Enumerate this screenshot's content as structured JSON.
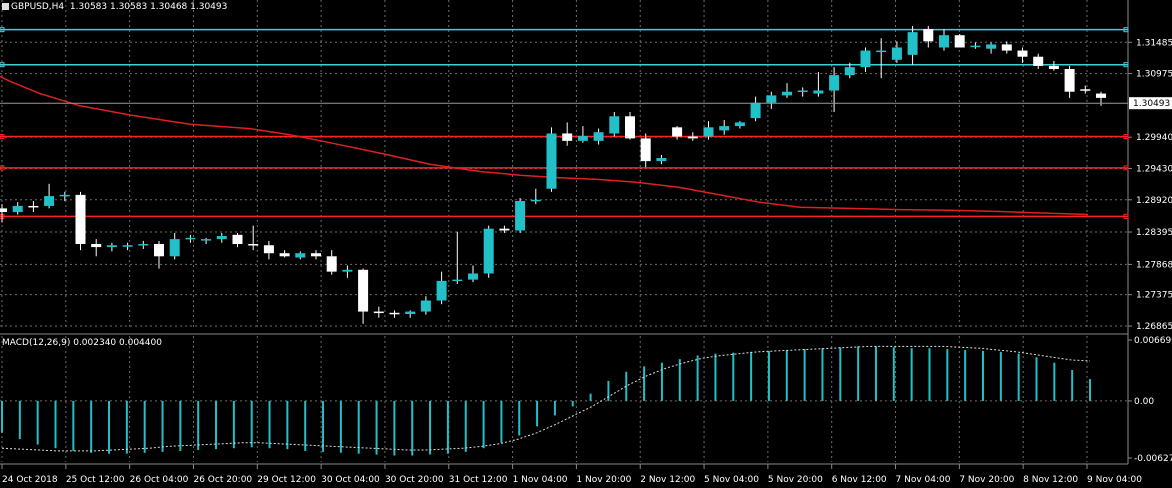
{
  "header": {
    "symbol": "GBPUSD,H4",
    "ohlc": "1.30583 1.30583 1.30468 1.30493"
  },
  "macd_header": "MACD(12,26,9) 0.002340 0.004400",
  "colors": {
    "bull": "#22c0c8",
    "bear": "#ffffff",
    "grid": "#6e6e6e",
    "ma": "#e02020",
    "hline_red": "#ff2020",
    "hline_cyan": "#40d0d8",
    "signal": "#dddddd"
  },
  "chart_data": [
    {
      "type": "candlestick",
      "title": "GBPUSD,H4",
      "ylim": [
        1.26865,
        1.3175
      ],
      "price_ticks": [
        "1.31485",
        "1.30975",
        "1.29940",
        "1.29430",
        "1.28920",
        "1.28395",
        "1.27868",
        "1.27375",
        "1.26865"
      ],
      "current_price": "1.30493",
      "time_labels": [
        "24 Oct 2018",
        "25 Oct 12:00",
        "26 Oct 04:00",
        "26 Oct 20:00",
        "29 Oct 12:00",
        "30 Oct 04:00",
        "30 Oct 20:00",
        "31 Oct 12:00",
        "1 Nov 04:00",
        "1 Nov 20:00",
        "2 Nov 12:00",
        "5 Nov 04:00",
        "5 Nov 20:00",
        "6 Nov 12:00",
        "7 Nov 04:00",
        "7 Nov 20:00",
        "8 Nov 12:00",
        "9 Nov 04:00"
      ],
      "horizontal_levels": [
        {
          "price": 1.3169,
          "color": "cyan"
        },
        {
          "price": 1.3112,
          "color": "cyan"
        },
        {
          "price": 1.2995,
          "color": "red"
        },
        {
          "price": 1.2944,
          "color": "red"
        },
        {
          "price": 1.2865,
          "color": "red"
        }
      ],
      "candles": [
        [
          1.2878,
          1.2885,
          1.2855,
          1.2872
        ],
        [
          1.2872,
          1.2888,
          1.2868,
          1.2882
        ],
        [
          1.2882,
          1.289,
          1.2872,
          1.288
        ],
        [
          1.2882,
          1.2918,
          1.2878,
          1.2898
        ],
        [
          1.2898,
          1.2905,
          1.289,
          1.29
        ],
        [
          1.29,
          1.2905,
          1.281,
          1.282
        ],
        [
          1.282,
          1.2828,
          1.28,
          1.2815
        ],
        [
          1.2815,
          1.2822,
          1.2808,
          1.2818
        ],
        [
          1.2818,
          1.2822,
          1.281,
          1.2818
        ],
        [
          1.2818,
          1.2825,
          1.2812,
          1.282
        ],
        [
          1.282,
          1.2825,
          1.278,
          1.28
        ],
        [
          1.28,
          1.2838,
          1.2795,
          1.2828
        ],
        [
          1.2828,
          1.2835,
          1.2822,
          1.283
        ],
        [
          1.2826,
          1.283,
          1.282,
          1.2828
        ],
        [
          1.2828,
          1.2838,
          1.2822,
          1.2833
        ],
        [
          1.2835,
          1.2838,
          1.2815,
          1.282
        ],
        [
          1.282,
          1.285,
          1.281,
          1.2818
        ],
        [
          1.2818,
          1.2825,
          1.2795,
          1.2805
        ],
        [
          1.2805,
          1.281,
          1.2798,
          1.28
        ],
        [
          1.2798,
          1.2808,
          1.2795,
          1.2805
        ],
        [
          1.2805,
          1.281,
          1.2795,
          1.28
        ],
        [
          1.28,
          1.281,
          1.277,
          1.2775
        ],
        [
          1.2775,
          1.2785,
          1.2765,
          1.2778
        ],
        [
          1.2778,
          1.278,
          1.269,
          1.271
        ],
        [
          1.271,
          1.2718,
          1.27,
          1.2708
        ],
        [
          1.2708,
          1.2712,
          1.27,
          1.2706
        ],
        [
          1.2706,
          1.2712,
          1.27,
          1.271
        ],
        [
          1.271,
          1.2735,
          1.2705,
          1.2728
        ],
        [
          1.2728,
          1.2775,
          1.2722,
          1.276
        ],
        [
          1.276,
          1.284,
          1.2755,
          1.2762
        ],
        [
          1.2762,
          1.2785,
          1.2758,
          1.2772
        ],
        [
          1.2772,
          1.285,
          1.2765,
          1.2845
        ],
        [
          1.2845,
          1.285,
          1.2838,
          1.2842
        ],
        [
          1.2842,
          1.2895,
          1.2838,
          1.289
        ],
        [
          1.289,
          1.291,
          1.2885,
          1.2892
        ],
        [
          1.291,
          1.301,
          1.2905,
          1.3
        ],
        [
          1.3,
          1.3018,
          1.298,
          1.2988
        ],
        [
          1.2988,
          1.3012,
          1.2985,
          1.2996
        ],
        [
          1.2988,
          1.3008,
          1.2982,
          1.3002
        ],
        [
          1.3,
          1.3035,
          1.2995,
          1.3028
        ],
        [
          1.3028,
          1.3035,
          1.299,
          1.2992
        ],
        [
          1.2992,
          1.3,
          1.2945,
          1.2955
        ],
        [
          1.2955,
          1.2965,
          1.295,
          1.296
        ],
        [
          1.301,
          1.3012,
          1.299,
          1.2995
        ],
        [
          1.2995,
          1.3002,
          1.2988,
          1.2992
        ],
        [
          1.2995,
          1.302,
          1.299,
          1.301
        ],
        [
          1.3005,
          1.3022,
          1.2998,
          1.3012
        ],
        [
          1.3012,
          1.302,
          1.3008,
          1.3018
        ],
        [
          1.3025,
          1.306,
          1.302,
          1.305
        ],
        [
          1.305,
          1.3068,
          1.304,
          1.3062
        ],
        [
          1.3062,
          1.3082,
          1.3058,
          1.3068
        ],
        [
          1.3068,
          1.3075,
          1.306,
          1.307
        ],
        [
          1.3065,
          1.31,
          1.306,
          1.307
        ],
        [
          1.307,
          1.3108,
          1.3035,
          1.3095
        ],
        [
          1.3095,
          1.3115,
          1.309,
          1.3108
        ],
        [
          1.3108,
          1.314,
          1.31,
          1.3135
        ],
        [
          1.3135,
          1.3155,
          1.309,
          1.3135
        ],
        [
          1.312,
          1.315,
          1.3115,
          1.314
        ],
        [
          1.3128,
          1.3175,
          1.3112,
          1.3165
        ],
        [
          1.317,
          1.3175,
          1.314,
          1.315
        ],
        [
          1.314,
          1.317,
          1.3135,
          1.316
        ],
        [
          1.316,
          1.3162,
          1.314,
          1.314
        ],
        [
          1.3142,
          1.3148,
          1.3138,
          1.3143
        ],
        [
          1.3138,
          1.3148,
          1.313,
          1.3145
        ],
        [
          1.3145,
          1.315,
          1.313,
          1.3135
        ],
        [
          1.3135,
          1.314,
          1.3115,
          1.3125
        ],
        [
          1.3125,
          1.313,
          1.3105,
          1.311
        ],
        [
          1.311,
          1.3118,
          1.3102,
          1.3105
        ],
        [
          1.3105,
          1.311,
          1.3058,
          1.3068
        ],
        [
          1.3072,
          1.3078,
          1.3065,
          1.307
        ],
        [
          1.3065,
          1.3068,
          1.3045,
          1.3058
        ]
      ],
      "moving_average": {
        "color": "red",
        "points": [
          [
            0,
            1.3093
          ],
          [
            10,
            1.3085
          ],
          [
            40,
            1.3065
          ],
          [
            80,
            1.3045
          ],
          [
            130,
            1.303
          ],
          [
            190,
            1.3015
          ],
          [
            250,
            1.3008
          ],
          [
            290,
            1.2998
          ],
          [
            330,
            1.2985
          ],
          [
            380,
            1.2968
          ],
          [
            430,
            1.295
          ],
          [
            480,
            1.2938
          ],
          [
            520,
            1.2932
          ],
          [
            560,
            1.2928
          ],
          [
            600,
            1.2925
          ],
          [
            640,
            1.292
          ],
          [
            680,
            1.2912
          ],
          [
            720,
            1.29
          ],
          [
            760,
            1.2888
          ],
          [
            800,
            1.288
          ],
          [
            850,
            1.2878
          ],
          [
            900,
            1.2876
          ],
          [
            950,
            1.2875
          ],
          [
            1000,
            1.2873
          ],
          [
            1050,
            1.287
          ],
          [
            1088,
            1.2868
          ]
        ]
      }
    },
    {
      "type": "bar",
      "title": "MACD(12,26,9) 0.002340 0.004400",
      "ylim": [
        -0.006276,
        0.006699
      ],
      "ticks": [
        "0.006699",
        "0.00",
        "-0.006276"
      ],
      "histogram": [
        -0.0035,
        -0.0042,
        -0.0048,
        -0.0052,
        -0.0055,
        -0.0057,
        -0.0058,
        -0.0058,
        -0.0057,
        -0.0056,
        -0.0055,
        -0.0054,
        -0.0053,
        -0.0052,
        -0.0051,
        -0.0052,
        -0.0053,
        -0.0055,
        -0.0056,
        -0.0057,
        -0.0058,
        -0.0059,
        -0.006,
        -0.006,
        -0.0059,
        -0.0058,
        -0.0056,
        -0.0052,
        -0.0046,
        -0.0038,
        -0.0028,
        -0.0016,
        -0.0006,
        0.0008,
        0.0022,
        0.0032,
        0.0038,
        0.0042,
        0.0046,
        0.005,
        0.0052,
        0.0053,
        0.0054,
        0.0055,
        0.0056,
        0.0057,
        0.0058,
        0.0059,
        0.006,
        0.006,
        0.0059,
        0.0058,
        0.0058,
        0.0057,
        0.0056,
        0.0055,
        0.0054,
        0.0052,
        0.0048,
        0.0042,
        0.0034,
        0.0024
      ],
      "signal": [
        -0.0052,
        -0.0053,
        -0.0054,
        -0.0055,
        -0.0055,
        -0.0055,
        -0.0054,
        -0.0053,
        -0.0052,
        -0.005,
        -0.0049,
        -0.0048,
        -0.0047,
        -0.0046,
        -0.0046,
        -0.0047,
        -0.0048,
        -0.0049,
        -0.005,
        -0.0051,
        -0.0052,
        -0.0053,
        -0.0054,
        -0.0054,
        -0.0053,
        -0.0052,
        -0.005,
        -0.0047,
        -0.0042,
        -0.0035,
        -0.0026,
        -0.0016,
        -0.0006,
        0.0006,
        0.0018,
        0.0028,
        0.0036,
        0.0042,
        0.0047,
        0.005,
        0.0052,
        0.0054,
        0.0055,
        0.0056,
        0.0057,
        0.0058,
        0.0059,
        0.006,
        0.006,
        0.006,
        0.006,
        0.006,
        0.0059,
        0.0058,
        0.0056,
        0.0054,
        0.0051,
        0.0048,
        0.0045,
        0.0044
      ]
    }
  ]
}
